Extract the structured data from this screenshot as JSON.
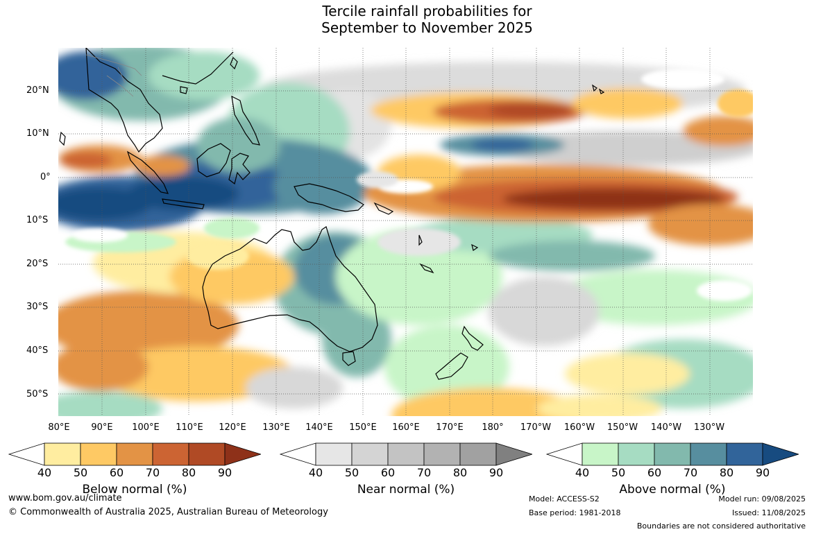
{
  "title": {
    "line1": "Tercile rainfall probabilities for",
    "line2": "September to November 2025"
  },
  "map": {
    "lat_labels": [
      "20°N",
      "10°N",
      "0°",
      "10°S",
      "20°S",
      "30°S",
      "40°S",
      "50°S"
    ],
    "lon_labels": [
      "80°E",
      "90°E",
      "100°E",
      "110°E",
      "120°E",
      "130°E",
      "140°E",
      "150°E",
      "160°E",
      "170°E",
      "180°",
      "170°W",
      "160°W",
      "150°W",
      "140°W",
      "130°W"
    ]
  },
  "legends": [
    {
      "title": "Below normal (%)",
      "ticks": [
        "40",
        "50",
        "60",
        "70",
        "80",
        "90"
      ],
      "colors": [
        "#ffffff",
        "#ffeda0",
        "#fec964",
        "#e39345",
        "#cc6433",
        "#b04a25",
        "#8e3119"
      ]
    },
    {
      "title": "Near normal (%)",
      "ticks": [
        "40",
        "50",
        "60",
        "70",
        "80",
        "90"
      ],
      "colors": [
        "#ffffff",
        "#e6e6e6",
        "#d4d4d4",
        "#c3c3c3",
        "#b2b2b2",
        "#a1a1a1",
        "#808080"
      ]
    },
    {
      "title": "Above normal (%)",
      "ticks": [
        "40",
        "50",
        "60",
        "70",
        "80",
        "90"
      ],
      "colors": [
        "#ffffff",
        "#c8f5c8",
        "#a6dcc2",
        "#82b9ad",
        "#578e9f",
        "#31649a",
        "#174b80"
      ]
    }
  ],
  "footer": {
    "website": "www.bom.gov.au/climate",
    "copyright": "© Commonwealth of Australia 2025, Australian Bureau of Meteorology",
    "model": "Model: ACCESS-S2",
    "base_period": "Base period: 1981-2018",
    "model_run": "Model run: 09/08/2025",
    "issued": "Issued: 11/08/2025",
    "disclaimer": "Boundaries are not considered authoritative"
  }
}
